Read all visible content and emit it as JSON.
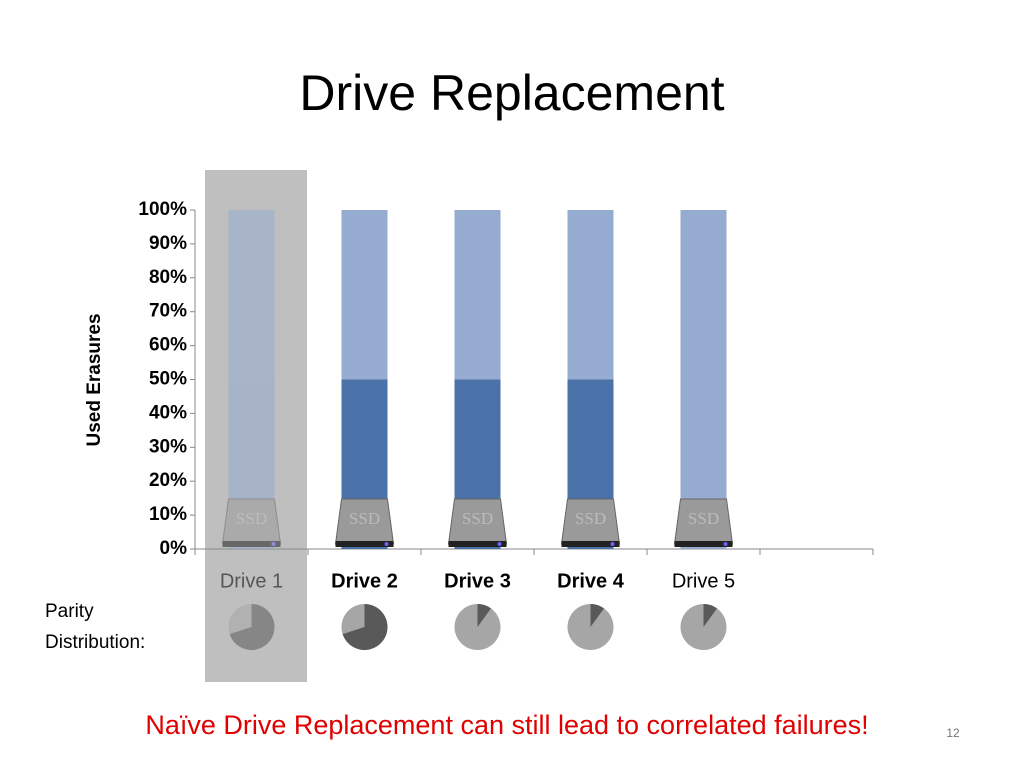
{
  "chart_data": {
    "type": "bar",
    "stacked": true,
    "title": "Drive Replacement",
    "y_label": "Used Erasures",
    "categories": [
      "Drive 1",
      "Drive 2",
      "Drive 3",
      "Drive 4",
      "Drive 5",
      null
    ],
    "series": [
      {
        "color": "#4a72a8",
        "values": [
          0,
          50,
          50,
          50,
          0,
          null
        ]
      },
      {
        "color": "#95acd0",
        "values": [
          100,
          50,
          50,
          50,
          100,
          null
        ]
      }
    ],
    "ylim": [
      0,
      100
    ],
    "yticks": [
      {
        "value": 0,
        "label": "0%"
      },
      {
        "value": 10,
        "label": "10%"
      },
      {
        "value": 20,
        "label": "20%"
      },
      {
        "value": 30,
        "label": "30%"
      },
      {
        "value": 40,
        "label": "40%"
      },
      {
        "value": 50,
        "label": "50%"
      },
      {
        "value": 60,
        "label": "60%"
      },
      {
        "value": 70,
        "label": "70%"
      },
      {
        "value": 80,
        "label": "80%"
      },
      {
        "value": 90,
        "label": "90%"
      },
      {
        "value": 100,
        "label": "100%"
      }
    ],
    "highlight": 0,
    "icon_label": "SSD",
    "parity": {
      "label": "Parity Distribution:",
      "values": [
        70,
        70,
        10,
        10,
        10
      ],
      "color": "#595959",
      "base_color": "#a6a6a6"
    },
    "note": "Naïve Drive Replacement can still lead to correlated failures!",
    "page_number": "12"
  }
}
